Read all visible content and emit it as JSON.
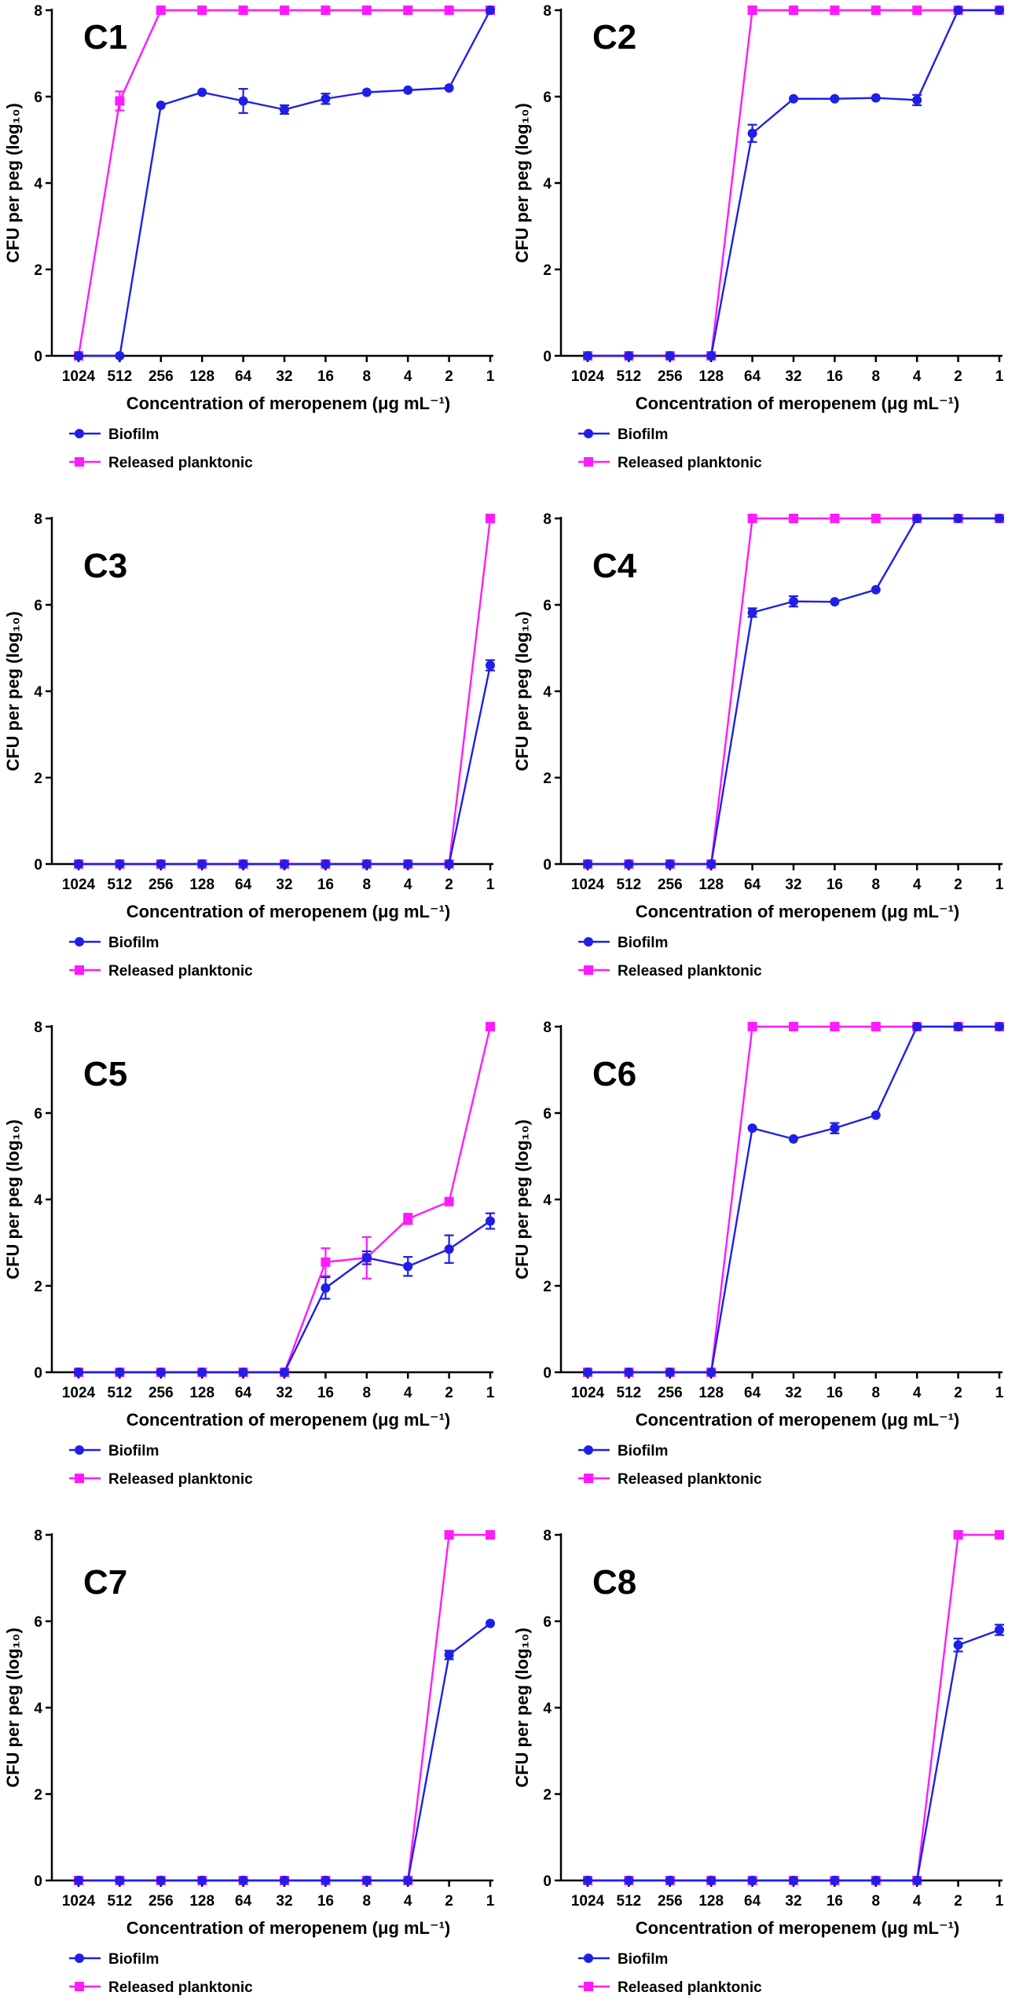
{
  "chart_data": [
    {
      "type": "line",
      "title": "C1",
      "xlabel": "Concentration of meropenem (μg mL⁻¹)",
      "ylabel": "CFU per peg (log₁₀)",
      "ylim": [
        0,
        8
      ],
      "yticks": [
        "0",
        "2",
        "4",
        "6",
        "8"
      ],
      "categories": [
        "1024",
        "512",
        "256",
        "128",
        "64",
        "32",
        "16",
        "8",
        "4",
        "2",
        "1"
      ],
      "series": [
        {
          "name": "Biofilm",
          "values": [
            0,
            0,
            5.8,
            6.1,
            5.9,
            5.7,
            5.95,
            6.1,
            6.15,
            6.2,
            8
          ],
          "errors": [
            0,
            0,
            0,
            0,
            0.28,
            0.1,
            0.12,
            0,
            0,
            0,
            0
          ]
        },
        {
          "name": "Released planktonic",
          "values": [
            0,
            5.9,
            8,
            8,
            8,
            8,
            8,
            8,
            8,
            8,
            8
          ],
          "errors": [
            0,
            0.22,
            0,
            0,
            0,
            0,
            0,
            0,
            0,
            0,
            0
          ]
        }
      ],
      "legend": [
        "Biofilm",
        "Released planktonic"
      ]
    },
    {
      "type": "line",
      "title": "C2",
      "xlabel": "Concentration of meropenem (μg mL⁻¹)",
      "ylabel": "CFU per peg (log₁₀)",
      "ylim": [
        0,
        8
      ],
      "yticks": [
        "0",
        "2",
        "4",
        "6",
        "8"
      ],
      "categories": [
        "1024",
        "512",
        "256",
        "128",
        "64",
        "32",
        "16",
        "8",
        "4",
        "2",
        "1"
      ],
      "series": [
        {
          "name": "Biofilm",
          "values": [
            0,
            0,
            0,
            0,
            5.15,
            5.95,
            5.95,
            5.97,
            5.92,
            8,
            8
          ],
          "errors": [
            0,
            0,
            0,
            0,
            0.2,
            0,
            0,
            0,
            0.12,
            0,
            0
          ]
        },
        {
          "name": "Released planktonic",
          "values": [
            0,
            0,
            0,
            0,
            8,
            8,
            8,
            8,
            8,
            8,
            8
          ],
          "errors": [
            0,
            0,
            0,
            0,
            0,
            0,
            0,
            0,
            0,
            0,
            0
          ]
        }
      ],
      "legend": [
        "Biofilm",
        "Released planktonic"
      ]
    },
    {
      "type": "line",
      "title": "C3",
      "xlabel": "Concentration of meropenem (μg mL⁻¹)",
      "ylabel": "CFU per peg (log₁₀)",
      "ylim": [
        0,
        8
      ],
      "yticks": [
        "0",
        "2",
        "4",
        "6",
        "8"
      ],
      "categories": [
        "1024",
        "512",
        "256",
        "128",
        "64",
        "32",
        "16",
        "8",
        "4",
        "2",
        "1"
      ],
      "series": [
        {
          "name": "Biofilm",
          "values": [
            0,
            0,
            0,
            0,
            0,
            0,
            0,
            0,
            0,
            0,
            4.6
          ],
          "errors": [
            0,
            0,
            0,
            0,
            0,
            0,
            0,
            0,
            0,
            0,
            0.12
          ]
        },
        {
          "name": "Released planktonic",
          "values": [
            0,
            0,
            0,
            0,
            0,
            0,
            0,
            0,
            0,
            0,
            8
          ],
          "errors": [
            0,
            0,
            0,
            0,
            0,
            0,
            0,
            0,
            0,
            0,
            0
          ]
        }
      ],
      "legend": [
        "Biofilm",
        "Released planktonic"
      ]
    },
    {
      "type": "line",
      "title": "C4",
      "xlabel": "Concentration of meropenem (μg mL⁻¹)",
      "ylabel": "CFU per peg (log₁₀)",
      "ylim": [
        0,
        8
      ],
      "yticks": [
        "0",
        "2",
        "4",
        "6",
        "8"
      ],
      "categories": [
        "1024",
        "512",
        "256",
        "128",
        "64",
        "32",
        "16",
        "8",
        "4",
        "2",
        "1"
      ],
      "series": [
        {
          "name": "Biofilm",
          "values": [
            0,
            0,
            0,
            0,
            5.82,
            6.08,
            6.07,
            6.35,
            8,
            8,
            8
          ],
          "errors": [
            0,
            0,
            0,
            0,
            0.1,
            0.12,
            0,
            0,
            0,
            0,
            0
          ]
        },
        {
          "name": "Released planktonic",
          "values": [
            0,
            0,
            0,
            0,
            8,
            8,
            8,
            8,
            8,
            8,
            8
          ],
          "errors": [
            0,
            0,
            0,
            0,
            0,
            0,
            0,
            0,
            0,
            0,
            0
          ]
        }
      ],
      "legend": [
        "Biofilm",
        "Released planktonic"
      ]
    },
    {
      "type": "line",
      "title": "C5",
      "xlabel": "Concentration of meropenem (μg mL⁻¹)",
      "ylabel": "CFU per peg (log₁₀)",
      "ylim": [
        0,
        8
      ],
      "yticks": [
        "0",
        "2",
        "4",
        "6",
        "8"
      ],
      "categories": [
        "1024",
        "512",
        "256",
        "128",
        "64",
        "32",
        "16",
        "8",
        "4",
        "2",
        "1"
      ],
      "series": [
        {
          "name": "Biofilm",
          "values": [
            0,
            0,
            0,
            0,
            0,
            0,
            1.95,
            2.65,
            2.45,
            2.85,
            3.5
          ],
          "errors": [
            0,
            0,
            0,
            0,
            0,
            0,
            0.25,
            0.15,
            0.22,
            0.32,
            0.18
          ]
        },
        {
          "name": "Released planktonic",
          "values": [
            0,
            0,
            0,
            0,
            0,
            0,
            2.55,
            2.65,
            3.55,
            3.95,
            8
          ],
          "errors": [
            0,
            0,
            0,
            0,
            0,
            0,
            0.32,
            0.48,
            0.12,
            0,
            0
          ]
        }
      ],
      "legend": [
        "Biofilm",
        "Released planktonic"
      ]
    },
    {
      "type": "line",
      "title": "C6",
      "xlabel": "Concentration of meropenem (μg mL⁻¹)",
      "ylabel": "CFU per peg (log₁₀)",
      "ylim": [
        0,
        8
      ],
      "yticks": [
        "0",
        "2",
        "4",
        "6",
        "8"
      ],
      "categories": [
        "1024",
        "512",
        "256",
        "128",
        "64",
        "32",
        "16",
        "8",
        "4",
        "2",
        "1"
      ],
      "series": [
        {
          "name": "Biofilm",
          "values": [
            0,
            0,
            0,
            0,
            5.65,
            5.4,
            5.65,
            5.95,
            8,
            8,
            8
          ],
          "errors": [
            0,
            0,
            0,
            0,
            0,
            0,
            0.12,
            0,
            0,
            0,
            0
          ]
        },
        {
          "name": "Released planktonic",
          "values": [
            0,
            0,
            0,
            0,
            8,
            8,
            8,
            8,
            8,
            8,
            8
          ],
          "errors": [
            0,
            0,
            0,
            0,
            0,
            0,
            0,
            0,
            0,
            0,
            0
          ]
        }
      ],
      "legend": [
        "Biofilm",
        "Released planktonic"
      ]
    },
    {
      "type": "line",
      "title": "C7",
      "xlabel": "Concentration of meropenem (μg mL⁻¹)",
      "ylabel": "CFU per peg (log₁₀)",
      "ylim": [
        0,
        8
      ],
      "yticks": [
        "0",
        "2",
        "4",
        "6",
        "8"
      ],
      "categories": [
        "1024",
        "512",
        "256",
        "128",
        "64",
        "32",
        "16",
        "8",
        "4",
        "2",
        "1"
      ],
      "series": [
        {
          "name": "Biofilm",
          "values": [
            0,
            0,
            0,
            0,
            0,
            0,
            0,
            0,
            0,
            5.22,
            5.95
          ],
          "errors": [
            0,
            0,
            0,
            0,
            0,
            0,
            0,
            0,
            0,
            0.1,
            0
          ]
        },
        {
          "name": "Released planktonic",
          "values": [
            0,
            0,
            0,
            0,
            0,
            0,
            0,
            0,
            0,
            8,
            8
          ],
          "errors": [
            0,
            0,
            0,
            0,
            0,
            0,
            0,
            0,
            0,
            0,
            0
          ]
        }
      ],
      "legend": [
        "Biofilm",
        "Released planktonic"
      ]
    },
    {
      "type": "line",
      "title": "C8",
      "xlabel": "Concentration of meropenem (μg mL⁻¹)",
      "ylabel": "CFU per peg (log₁₀)",
      "ylim": [
        0,
        8
      ],
      "yticks": [
        "0",
        "2",
        "4",
        "6",
        "8"
      ],
      "categories": [
        "1024",
        "512",
        "256",
        "128",
        "64",
        "32",
        "16",
        "8",
        "4",
        "2",
        "1"
      ],
      "series": [
        {
          "name": "Biofilm",
          "values": [
            0,
            0,
            0,
            0,
            0,
            0,
            0,
            0,
            0,
            5.45,
            5.8
          ],
          "errors": [
            0,
            0,
            0,
            0,
            0,
            0,
            0,
            0,
            0,
            0.15,
            0.12
          ]
        },
        {
          "name": "Released planktonic",
          "values": [
            0,
            0,
            0,
            0,
            0,
            0,
            0,
            0,
            0,
            8,
            8
          ],
          "errors": [
            0,
            0,
            0,
            0,
            0,
            0,
            0,
            0,
            0,
            0,
            0
          ]
        }
      ],
      "legend": [
        "Biofilm",
        "Released planktonic"
      ]
    }
  ],
  "colors": {
    "Biofilm": "#1f1fe6",
    "Released planktonic": "#ff1aff",
    "axis": "#000000"
  }
}
